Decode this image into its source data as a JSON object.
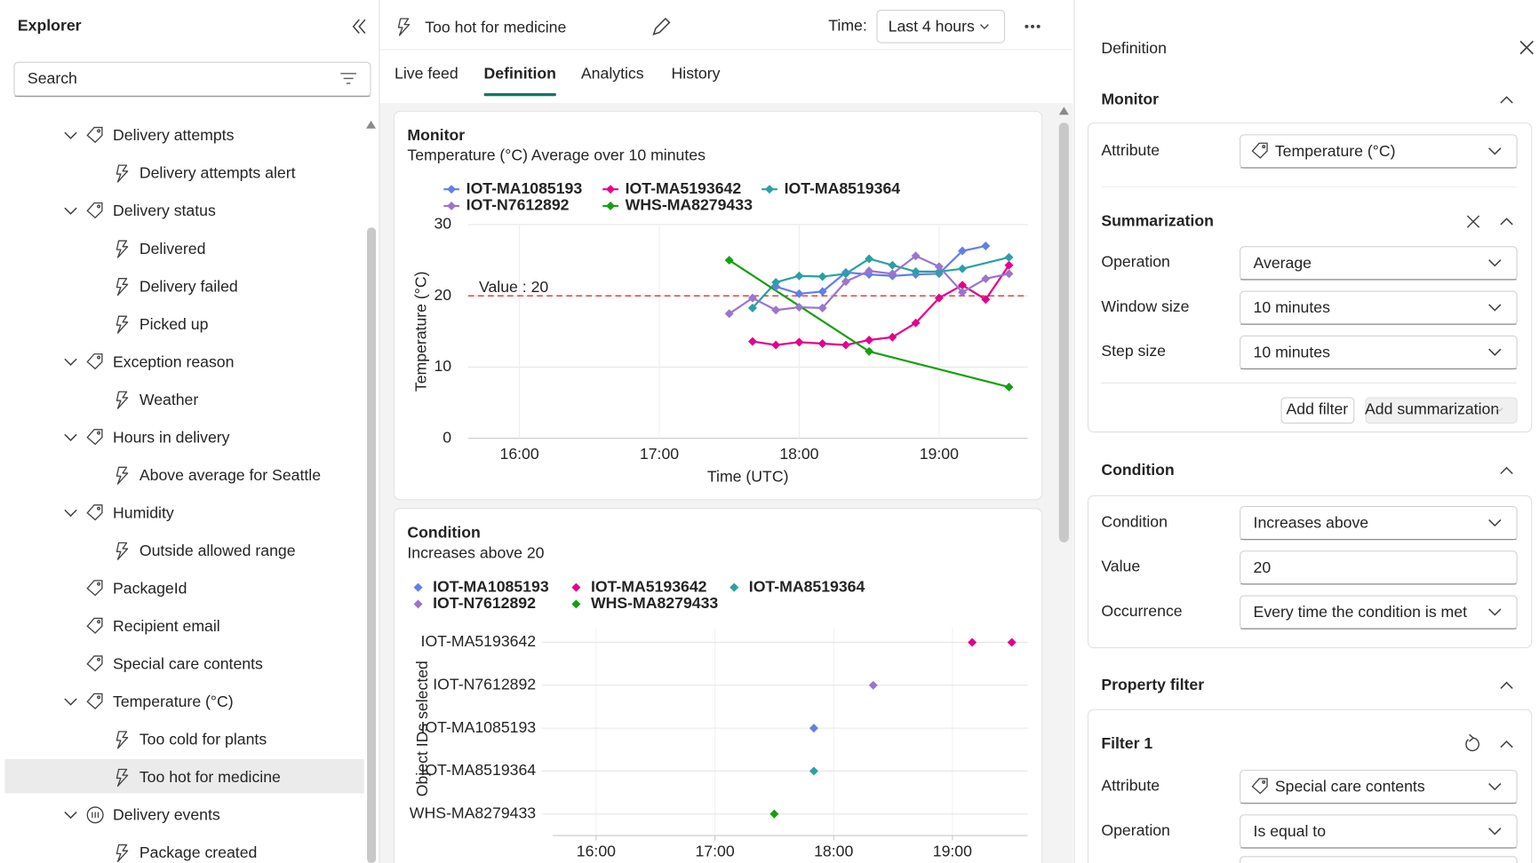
{
  "explorer": {
    "title": "Explorer",
    "search_placeholder": "Search",
    "items": [
      {
        "label": "Delivery attempts",
        "kind": "attribute",
        "expanded": true
      },
      {
        "label": "Delivery attempts alert",
        "kind": "rule"
      },
      {
        "label": "Delivery status",
        "kind": "attribute",
        "expanded": true
      },
      {
        "label": "Delivered",
        "kind": "rule"
      },
      {
        "label": "Delivery failed",
        "kind": "rule"
      },
      {
        "label": "Picked up",
        "kind": "rule"
      },
      {
        "label": "Exception reason",
        "kind": "attribute",
        "expanded": true
      },
      {
        "label": "Weather",
        "kind": "rule"
      },
      {
        "label": "Hours in delivery",
        "kind": "attribute",
        "expanded": true
      },
      {
        "label": "Above average for Seattle",
        "kind": "rule"
      },
      {
        "label": "Humidity",
        "kind": "attribute",
        "expanded": true
      },
      {
        "label": "Outside allowed range",
        "kind": "rule"
      },
      {
        "label": "PackageId",
        "kind": "attribute"
      },
      {
        "label": "Recipient email",
        "kind": "attribute"
      },
      {
        "label": "Special care contents",
        "kind": "attribute"
      },
      {
        "label": "Temperature (°C)",
        "kind": "attribute",
        "expanded": true
      },
      {
        "label": "Too cold for plants",
        "kind": "rule"
      },
      {
        "label": "Too hot for medicine",
        "kind": "rule",
        "selected": true
      },
      {
        "label": "Delivery events",
        "kind": "event",
        "expanded": true
      },
      {
        "label": "Package created",
        "kind": "rule"
      }
    ]
  },
  "header": {
    "title": "Too hot for medicine",
    "time_label": "Time:",
    "time_value": "Last 4 hours"
  },
  "tabs": [
    "Live feed",
    "Definition",
    "Analytics",
    "History"
  ],
  "active_tab": 1,
  "monitor_chart": {
    "type": "line",
    "title": "Monitor",
    "subtitle": "Temperature (°C) Average over 10 minutes",
    "y_label": "Temperature (°C)",
    "x_label": "Time (UTC)",
    "xlim": [
      "15:38",
      "19:38"
    ],
    "xticks": [
      "16:00",
      "17:00",
      "18:00",
      "19:00"
    ],
    "ylim": [
      0,
      30
    ],
    "yticks": [
      0,
      10,
      20,
      30
    ],
    "grid": true,
    "threshold": {
      "value": 20,
      "label": "Value : 20",
      "color": "#d13438"
    },
    "series": [
      {
        "name": "IOT-MA1085193",
        "color": "#6180e5",
        "x": [
          "17:50",
          "18:00",
          "18:10",
          "18:20",
          "18:30",
          "18:40",
          "18:50",
          "19:00",
          "19:10",
          "19:20"
        ],
        "values": [
          21.3,
          20.3,
          20.6,
          23.3,
          23,
          22.8,
          23,
          23.1,
          26.3,
          27
        ]
      },
      {
        "name": "IOT-MA5193642",
        "color": "#e3008c",
        "x": [
          "17:40",
          "17:50",
          "18:00",
          "18:10",
          "18:20",
          "18:30",
          "18:40",
          "18:50",
          "19:00",
          "19:10",
          "19:20",
          "19:30"
        ],
        "values": [
          13.6,
          13.1,
          13.5,
          13.3,
          13.1,
          13.8,
          14.2,
          16.2,
          19.7,
          21.5,
          19.5,
          24.3
        ]
      },
      {
        "name": "IOT-MA8519364",
        "color": "#2aa0a4",
        "x": [
          "17:40",
          "17:50",
          "18:00",
          "18:10",
          "18:20",
          "18:30",
          "18:40",
          "18:50",
          "19:00",
          "19:10",
          "19:30"
        ],
        "values": [
          18.3,
          21.9,
          22.8,
          22.7,
          23.1,
          25.2,
          24.3,
          23.4,
          23.4,
          23.8,
          25.4
        ]
      },
      {
        "name": "IOT-N7612892",
        "color": "#9a74cf",
        "x": [
          "17:30",
          "17:40",
          "17:50",
          "18:00",
          "18:10",
          "18:20",
          "18:30",
          "18:40",
          "18:50",
          "19:00",
          "19:10",
          "19:20",
          "19:30"
        ],
        "values": [
          17.5,
          19.7,
          18,
          18.4,
          18.3,
          22,
          23.5,
          23.1,
          25.6,
          24.1,
          20.5,
          22.4,
          23.1
        ]
      },
      {
        "name": "WHS-MA8279433",
        "color": "#13a10e",
        "x": [
          "17:30",
          "18:30",
          "19:30"
        ],
        "values": [
          25,
          12.2,
          7.2
        ]
      }
    ]
  },
  "condition_chart": {
    "type": "strip",
    "title": "Condition",
    "subtitle": "Increases above 20",
    "y_label": "Object IDs selected",
    "categories": [
      "IOT-MA5193642",
      "IOT-N7612892",
      "IOT-MA1085193",
      "IOT-MA8519364",
      "WHS-MA8279433"
    ],
    "xlim": [
      "15:38",
      "19:38"
    ],
    "xticks": [
      "16:00",
      "17:00",
      "18:00",
      "19:00"
    ],
    "series": [
      {
        "name": "IOT-MA1085193",
        "color": "#6180e5",
        "x": [
          "17:50"
        ]
      },
      {
        "name": "IOT-MA5193642",
        "color": "#e3008c",
        "x": [
          "19:10",
          "19:30"
        ]
      },
      {
        "name": "IOT-MA8519364",
        "color": "#2aa0a4",
        "x": [
          "17:50"
        ]
      },
      {
        "name": "IOT-N7612892",
        "color": "#9a74cf",
        "x": [
          "18:20"
        ]
      },
      {
        "name": "WHS-MA8279433",
        "color": "#13a10e",
        "x": [
          "17:30"
        ]
      }
    ]
  },
  "definition": {
    "title": "Definition",
    "monitor": {
      "title": "Monitor",
      "fields": [
        {
          "label": "Attribute",
          "value": "Temperature (°C)",
          "control": "dropdown",
          "icon": "attribute"
        }
      ]
    },
    "summarization": {
      "title": "Summarization",
      "fields": [
        {
          "label": "Operation",
          "value": "Average",
          "control": "dropdown"
        },
        {
          "label": "Window size",
          "value": "10 minutes",
          "control": "dropdown"
        },
        {
          "label": "Step size",
          "value": "10 minutes",
          "control": "dropdown"
        }
      ],
      "add_filter": "Add filter",
      "add_summarization": "Add summarization"
    },
    "condition": {
      "title": "Condition",
      "fields": [
        {
          "label": "Condition",
          "value": "Increases above",
          "control": "dropdown"
        },
        {
          "label": "Value",
          "value": 20,
          "control": "input"
        },
        {
          "label": "Occurrence",
          "value": "Every time the condition is met",
          "control": "dropdown"
        }
      ]
    },
    "property_filter": {
      "title": "Property filter",
      "filter": {
        "title": "Filter 1",
        "fields": [
          {
            "label": "Attribute",
            "value": "Special care contents",
            "control": "dropdown",
            "icon": "attribute"
          },
          {
            "label": "Operation",
            "value": "Is equal to",
            "control": "dropdown"
          }
        ]
      }
    }
  }
}
